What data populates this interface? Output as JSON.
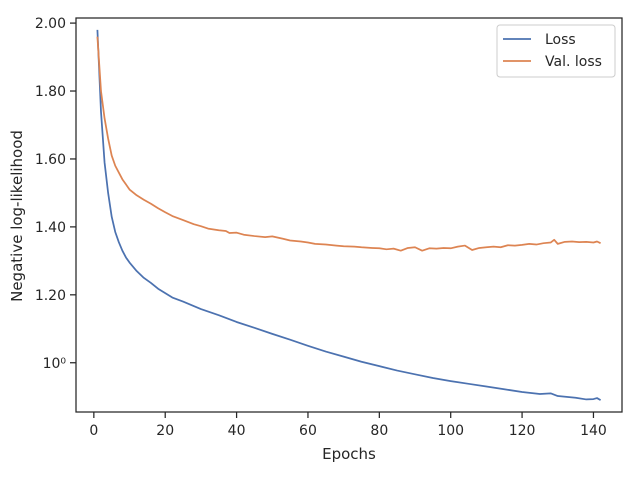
{
  "chart_data": {
    "type": "line",
    "title": "",
    "xlabel": "Epochs",
    "ylabel": "Negative log-likelihood",
    "xlim": [
      -5,
      148
    ],
    "ylim": [
      0.855,
      2.015
    ],
    "grid": false,
    "legend_position": "top-right",
    "x_ticks": [
      {
        "value": 0,
        "label": "0"
      },
      {
        "value": 20,
        "label": "20"
      },
      {
        "value": 40,
        "label": "40"
      },
      {
        "value": 60,
        "label": "60"
      },
      {
        "value": 80,
        "label": "80"
      },
      {
        "value": 100,
        "label": "100"
      },
      {
        "value": 120,
        "label": "120"
      },
      {
        "value": 140,
        "label": "140"
      }
    ],
    "y_ticks": [
      {
        "value": 1.0,
        "label": "10⁰"
      },
      {
        "value": 1.2,
        "label": "1.20"
      },
      {
        "value": 1.4,
        "label": "1.40"
      },
      {
        "value": 1.6,
        "label": "1.60"
      },
      {
        "value": 1.8,
        "label": "1.80"
      },
      {
        "value": 2.0,
        "label": "2.00"
      }
    ],
    "series": [
      {
        "name": "Loss",
        "color": "#4c72b0",
        "points": [
          [
            1,
            1.98
          ],
          [
            2,
            1.74
          ],
          [
            3,
            1.59
          ],
          [
            4,
            1.5
          ],
          [
            5,
            1.43
          ],
          [
            6,
            1.385
          ],
          [
            7,
            1.355
          ],
          [
            8,
            1.33
          ],
          [
            9,
            1.31
          ],
          [
            10,
            1.295
          ],
          [
            12,
            1.27
          ],
          [
            14,
            1.25
          ],
          [
            16,
            1.235
          ],
          [
            18,
            1.218
          ],
          [
            20,
            1.205
          ],
          [
            22,
            1.192
          ],
          [
            25,
            1.18
          ],
          [
            28,
            1.167
          ],
          [
            30,
            1.158
          ],
          [
            35,
            1.14
          ],
          [
            40,
            1.12
          ],
          [
            45,
            1.103
          ],
          [
            50,
            1.085
          ],
          [
            55,
            1.068
          ],
          [
            60,
            1.05
          ],
          [
            65,
            1.033
          ],
          [
            70,
            1.018
          ],
          [
            75,
            1.003
          ],
          [
            80,
            0.99
          ],
          [
            85,
            0.977
          ],
          [
            90,
            0.966
          ],
          [
            95,
            0.955
          ],
          [
            100,
            0.946
          ],
          [
            105,
            0.938
          ],
          [
            110,
            0.93
          ],
          [
            115,
            0.922
          ],
          [
            120,
            0.914
          ],
          [
            125,
            0.908
          ],
          [
            128,
            0.91
          ],
          [
            130,
            0.902
          ],
          [
            135,
            0.897
          ],
          [
            138,
            0.892
          ],
          [
            140,
            0.893
          ],
          [
            141,
            0.896
          ],
          [
            142,
            0.89
          ]
        ]
      },
      {
        "name": "Val. loss",
        "color": "#dd8452",
        "points": [
          [
            1,
            1.96
          ],
          [
            2,
            1.8
          ],
          [
            3,
            1.72
          ],
          [
            4,
            1.66
          ],
          [
            5,
            1.61
          ],
          [
            6,
            1.58
          ],
          [
            7,
            1.56
          ],
          [
            8,
            1.54
          ],
          [
            9,
            1.525
          ],
          [
            10,
            1.51
          ],
          [
            12,
            1.493
          ],
          [
            14,
            1.48
          ],
          [
            16,
            1.468
          ],
          [
            18,
            1.455
          ],
          [
            20,
            1.443
          ],
          [
            22,
            1.432
          ],
          [
            25,
            1.42
          ],
          [
            28,
            1.408
          ],
          [
            30,
            1.402
          ],
          [
            32,
            1.395
          ],
          [
            35,
            1.39
          ],
          [
            37,
            1.388
          ],
          [
            38,
            1.382
          ],
          [
            40,
            1.383
          ],
          [
            42,
            1.377
          ],
          [
            45,
            1.373
          ],
          [
            48,
            1.37
          ],
          [
            50,
            1.372
          ],
          [
            53,
            1.365
          ],
          [
            55,
            1.36
          ],
          [
            58,
            1.357
          ],
          [
            60,
            1.354
          ],
          [
            62,
            1.35
          ],
          [
            65,
            1.348
          ],
          [
            68,
            1.345
          ],
          [
            70,
            1.343
          ],
          [
            73,
            1.342
          ],
          [
            75,
            1.34
          ],
          [
            78,
            1.338
          ],
          [
            80,
            1.337
          ],
          [
            82,
            1.334
          ],
          [
            84,
            1.336
          ],
          [
            86,
            1.33
          ],
          [
            88,
            1.338
          ],
          [
            90,
            1.34
          ],
          [
            92,
            1.33
          ],
          [
            94,
            1.337
          ],
          [
            96,
            1.336
          ],
          [
            98,
            1.338
          ],
          [
            100,
            1.337
          ],
          [
            102,
            1.342
          ],
          [
            104,
            1.345
          ],
          [
            106,
            1.332
          ],
          [
            108,
            1.338
          ],
          [
            110,
            1.34
          ],
          [
            112,
            1.342
          ],
          [
            114,
            1.34
          ],
          [
            116,
            1.346
          ],
          [
            118,
            1.345
          ],
          [
            120,
            1.347
          ],
          [
            122,
            1.35
          ],
          [
            124,
            1.348
          ],
          [
            126,
            1.352
          ],
          [
            128,
            1.354
          ],
          [
            129,
            1.362
          ],
          [
            130,
            1.35
          ],
          [
            132,
            1.356
          ],
          [
            134,
            1.357
          ],
          [
            136,
            1.355
          ],
          [
            138,
            1.356
          ],
          [
            140,
            1.354
          ],
          [
            141,
            1.357
          ],
          [
            142,
            1.352
          ]
        ]
      }
    ]
  }
}
